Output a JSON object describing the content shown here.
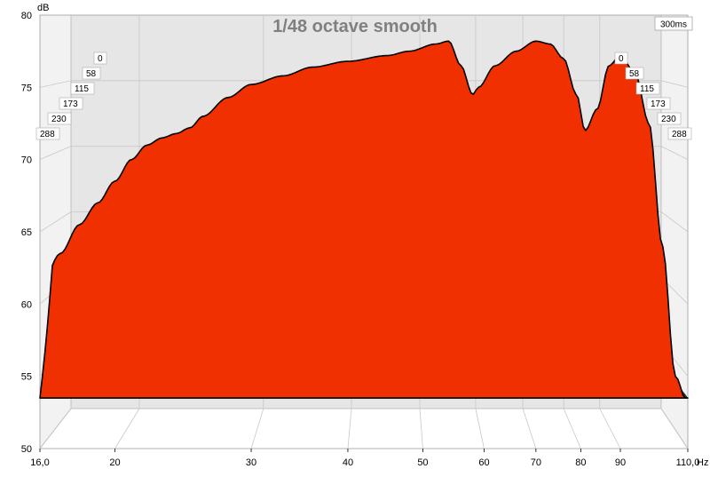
{
  "chart_data": {
    "type": "area",
    "title": "1/48 octave smooth",
    "ylabel": "dB",
    "xlabel_unit": "Hz",
    "time_label": "300ms",
    "x_scale": "log",
    "xlim": [
      16,
      110
    ],
    "ylim": [
      50,
      80
    ],
    "x_ticks": [
      {
        "v": 16,
        "label": "16,0"
      },
      {
        "v": 20,
        "label": "20"
      },
      {
        "v": 30,
        "label": "30"
      },
      {
        "v": 40,
        "label": "40"
      },
      {
        "v": 50,
        "label": "50"
      },
      {
        "v": 60,
        "label": "60"
      },
      {
        "v": 70,
        "label": "70"
      },
      {
        "v": 80,
        "label": "80"
      },
      {
        "v": 90,
        "label": "90"
      },
      {
        "v": 110,
        "label": "110,0"
      }
    ],
    "y_ticks": [
      {
        "v": 50,
        "label": "50"
      },
      {
        "v": 55,
        "label": "55"
      },
      {
        "v": 60,
        "label": "60"
      },
      {
        "v": 65,
        "label": "65"
      },
      {
        "v": 70,
        "label": "70"
      },
      {
        "v": 75,
        "label": "75"
      }
    ],
    "y_top_label": "80",
    "time_ticks_ms": [
      "0",
      "58",
      "115",
      "173",
      "230",
      "288"
    ],
    "series_count": 50,
    "colors": {
      "fill": "#f03000",
      "line": "#000000",
      "wall": "#e6e6e6",
      "grid": "#c8c8c8"
    },
    "front_slice_db": [
      {
        "hz": 16,
        "db": 61.0
      },
      {
        "hz": 17,
        "db": 63.5
      },
      {
        "hz": 18,
        "db": 65.5
      },
      {
        "hz": 19,
        "db": 67.0
      },
      {
        "hz": 20,
        "db": 68.5
      },
      {
        "hz": 21,
        "db": 70.0
      },
      {
        "hz": 22,
        "db": 71.0
      },
      {
        "hz": 23,
        "db": 71.5
      },
      {
        "hz": 24,
        "db": 71.8
      },
      {
        "hz": 25,
        "db": 72.2
      },
      {
        "hz": 26,
        "db": 73.0
      },
      {
        "hz": 28,
        "db": 74.3
      },
      {
        "hz": 30,
        "db": 75.2
      },
      {
        "hz": 33,
        "db": 75.8
      },
      {
        "hz": 36,
        "db": 76.4
      },
      {
        "hz": 40,
        "db": 76.8
      },
      {
        "hz": 45,
        "db": 77.2
      },
      {
        "hz": 48,
        "db": 77.5
      },
      {
        "hz": 52,
        "db": 78.0
      },
      {
        "hz": 54,
        "db": 78.2
      },
      {
        "hz": 56,
        "db": 76.5
      },
      {
        "hz": 58,
        "db": 74.5
      },
      {
        "hz": 59,
        "db": 75.0
      },
      {
        "hz": 62,
        "db": 76.5
      },
      {
        "hz": 66,
        "db": 77.5
      },
      {
        "hz": 70,
        "db": 78.2
      },
      {
        "hz": 73,
        "db": 78.0
      },
      {
        "hz": 76,
        "db": 77.0
      },
      {
        "hz": 79,
        "db": 74.5
      },
      {
        "hz": 81,
        "db": 72.0
      },
      {
        "hz": 84,
        "db": 73.5
      },
      {
        "hz": 87,
        "db": 76.5
      },
      {
        "hz": 90,
        "db": 77.2
      },
      {
        "hz": 94,
        "db": 76.0
      },
      {
        "hz": 98,
        "db": 72.5
      },
      {
        "hz": 102,
        "db": 64.0
      },
      {
        "hz": 106,
        "db": 55.0
      },
      {
        "hz": 110,
        "db": 53.0
      }
    ],
    "nulls_hz": [
      {
        "hz": 20.5,
        "depth": 0.95,
        "w": 0.035
      },
      {
        "hz": 24.5,
        "depth": 0.55,
        "w": 0.025
      },
      {
        "hz": 28.5,
        "depth": 0.45,
        "w": 0.03
      },
      {
        "hz": 37.0,
        "depth": 0.6,
        "w": 0.025
      },
      {
        "hz": 57.0,
        "depth": 1.0,
        "w": 0.022
      },
      {
        "hz": 68.5,
        "depth": 0.7,
        "w": 0.018
      },
      {
        "hz": 80.0,
        "depth": 0.85,
        "w": 0.014
      },
      {
        "hz": 87.0,
        "depth": 0.9,
        "w": 0.012
      },
      {
        "hz": 95.0,
        "depth": 0.8,
        "w": 0.012
      }
    ],
    "floor_db": 53.5
  }
}
